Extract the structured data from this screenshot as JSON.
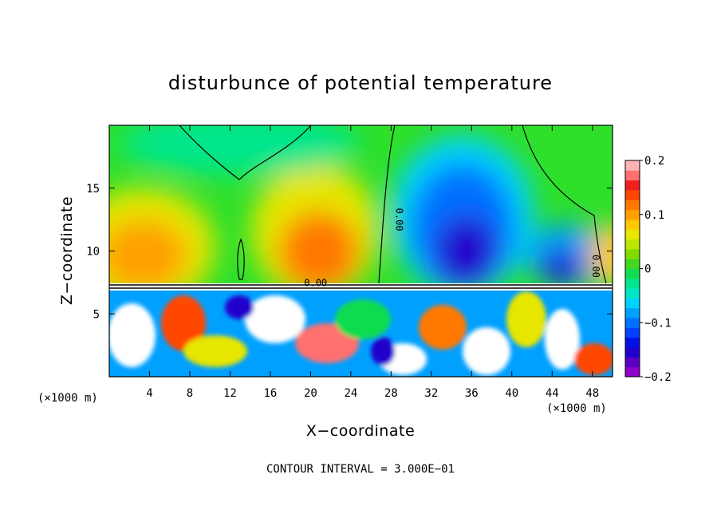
{
  "chart_data": {
    "type": "heatmap",
    "title": "disturbunce of potential temperature",
    "xlabel": "X−coordinate",
    "ylabel": "Z−coordinate",
    "x_unit": "(×1000 m)",
    "x_unit_right": "(×1000 m)",
    "xlim": [
      0,
      50
    ],
    "ylim": [
      0,
      20
    ],
    "xticks": [
      4,
      8,
      12,
      16,
      20,
      24,
      28,
      32,
      36,
      40,
      44,
      48
    ],
    "yticks": [
      5,
      10,
      15
    ],
    "contour_note": "CONTOUR INTERVAL = 3.000E−01",
    "contour_labels": [
      {
        "text": "0.00",
        "x": 28.5,
        "y": 12.5,
        "vertical": true
      },
      {
        "text": "0.00",
        "x": 20.5,
        "y": 7.2,
        "vertical": false
      },
      {
        "text": "0.00",
        "x": 48.0,
        "y": 8.8,
        "vertical": true
      }
    ],
    "colorbar": {
      "min": -0.2,
      "max": 0.2,
      "tick_labels": [
        "0.2",
        "0.1",
        "0",
        "−0.1",
        "−0.2"
      ],
      "tick_values": [
        0.2,
        0.1,
        0,
        -0.1,
        -0.2
      ],
      "colors": [
        "#8f00c8",
        "#5a00c0",
        "#2200cc",
        "#0010e6",
        "#0040ff",
        "#0070ff",
        "#00a0ff",
        "#00d2ff",
        "#00e6c8",
        "#00e68c",
        "#10dc50",
        "#40d820",
        "#80dc00",
        "#bce600",
        "#e6e600",
        "#ffc800",
        "#ffa000",
        "#ff7800",
        "#ff4600",
        "#f01e1e",
        "#ff7070",
        "#ffb4b4"
      ]
    },
    "upper_field_features": [
      {
        "kind": "warm",
        "x": 5,
        "z": 8.5,
        "value": 0.15
      },
      {
        "kind": "warm",
        "x": 20,
        "z": 9.5,
        "value": 0.14
      },
      {
        "kind": "cold",
        "x": 36,
        "z": 10.5,
        "value": -0.19
      },
      {
        "kind": "cold",
        "x": 45,
        "z": 8.5,
        "value": -0.16
      },
      {
        "kind": "neutral",
        "x": 14,
        "z": 16,
        "value": 0.0
      }
    ]
  }
}
